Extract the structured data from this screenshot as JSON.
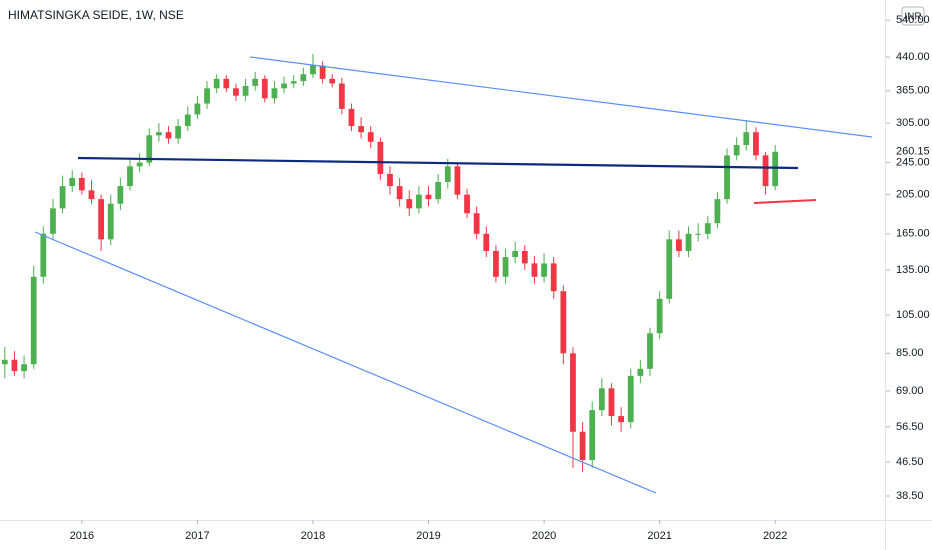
{
  "chart_data": {
    "type": "candlestick",
    "title": "HIMATSINGKA SEIDE, 1W, NSE",
    "currency": "INR",
    "log": true,
    "up_color": "#4caf50",
    "down_color": "#f23645",
    "categories": [
      null,
      null,
      null,
      null,
      null,
      null,
      null,
      null,
      "2016",
      null,
      null,
      null,
      null,
      null,
      null,
      null,
      null,
      null,
      null,
      null,
      "2017",
      null,
      null,
      null,
      null,
      null,
      null,
      null,
      null,
      null,
      null,
      null,
      "2018",
      null,
      null,
      null,
      null,
      null,
      null,
      null,
      null,
      null,
      null,
      null,
      "2019",
      null,
      null,
      null,
      null,
      null,
      null,
      null,
      null,
      null,
      null,
      null,
      "2020",
      null,
      null,
      null,
      null,
      null,
      null,
      null,
      null,
      null,
      null,
      null,
      "2021",
      null,
      null,
      null,
      null,
      null,
      null,
      null,
      null,
      null,
      null,
      null,
      "2022"
    ],
    "open": [
      80,
      82,
      77,
      80,
      130,
      165,
      190,
      215,
      225,
      210,
      200,
      160,
      195,
      215,
      240,
      245,
      285,
      290,
      280,
      300,
      320,
      340,
      370,
      390,
      370,
      355,
      375,
      390,
      350,
      370,
      380,
      385,
      400,
      420,
      390,
      380,
      330,
      300,
      290,
      275,
      230,
      215,
      200,
      190,
      205,
      200,
      220,
      240,
      205,
      185,
      165,
      150,
      130,
      145,
      150,
      140,
      130,
      140,
      120,
      85,
      55,
      47,
      62,
      70,
      60,
      58,
      75,
      78,
      95,
      115,
      160,
      150,
      165,
      165,
      175,
      200,
      255,
      270,
      290,
      255,
      215
    ],
    "high": [
      88,
      86,
      84,
      138,
      172,
      200,
      228,
      235,
      232,
      222,
      205,
      205,
      225,
      250,
      258,
      296,
      305,
      300,
      312,
      335,
      355,
      385,
      400,
      398,
      380,
      390,
      405,
      398,
      385,
      395,
      398,
      415,
      448,
      430,
      400,
      392,
      340,
      315,
      300,
      282,
      240,
      225,
      210,
      215,
      215,
      230,
      250,
      245,
      212,
      192,
      172,
      155,
      152,
      158,
      155,
      146,
      148,
      145,
      124,
      88,
      58,
      65,
      74,
      72,
      63,
      78,
      82,
      98,
      120,
      168,
      168,
      172,
      175,
      182,
      208,
      265,
      282,
      310,
      298,
      260,
      270
    ],
    "low": [
      74,
      75,
      74,
      78,
      125,
      160,
      185,
      208,
      205,
      195,
      150,
      155,
      188,
      210,
      232,
      240,
      275,
      272,
      272,
      292,
      312,
      330,
      360,
      362,
      345,
      345,
      365,
      342,
      340,
      360,
      370,
      375,
      392,
      380,
      372,
      320,
      292,
      280,
      265,
      222,
      205,
      192,
      182,
      185,
      192,
      195,
      212,
      200,
      180,
      160,
      145,
      126,
      125,
      140,
      135,
      125,
      126,
      115,
      80,
      45,
      44,
      45,
      60,
      57,
      55,
      56,
      72,
      75,
      92,
      112,
      145,
      145,
      158,
      160,
      170,
      195,
      248,
      262,
      248,
      205,
      210
    ],
    "close": [
      82,
      77,
      80,
      130,
      165,
      190,
      215,
      225,
      210,
      200,
      160,
      195,
      215,
      240,
      245,
      285,
      290,
      280,
      300,
      320,
      340,
      370,
      390,
      370,
      355,
      375,
      390,
      350,
      370,
      380,
      385,
      400,
      420,
      390,
      380,
      330,
      300,
      290,
      275,
      230,
      215,
      200,
      190,
      205,
      200,
      220,
      240,
      205,
      185,
      165,
      150,
      130,
      145,
      150,
      140,
      130,
      140,
      120,
      85,
      55,
      47,
      62,
      70,
      60,
      58,
      75,
      78,
      95,
      115,
      160,
      150,
      165,
      165,
      175,
      200,
      255,
      270,
      290,
      255,
      215,
      260.15
    ],
    "ylim": [
      33.7,
      604
    ],
    "yticks": [
      {
        "value": 38.5,
        "label": "38.50"
      },
      {
        "value": 46.5,
        "label": "46.50"
      },
      {
        "value": 56.5,
        "label": "56.50"
      },
      {
        "value": 69,
        "label": "69.00"
      },
      {
        "value": 85,
        "label": "85.00"
      },
      {
        "value": 105,
        "label": "105.00"
      },
      {
        "value": 135,
        "label": "135.00"
      },
      {
        "value": 165,
        "label": "165.00"
      },
      {
        "value": 205,
        "label": "205.00"
      },
      {
        "value": 245,
        "label": "245.00"
      },
      {
        "value": 305,
        "label": "305.00"
      },
      {
        "value": 365,
        "label": "365.00"
      },
      {
        "value": 440,
        "label": "440.00"
      },
      {
        "value": 540,
        "label": "540.00"
      }
    ]
  }
}
